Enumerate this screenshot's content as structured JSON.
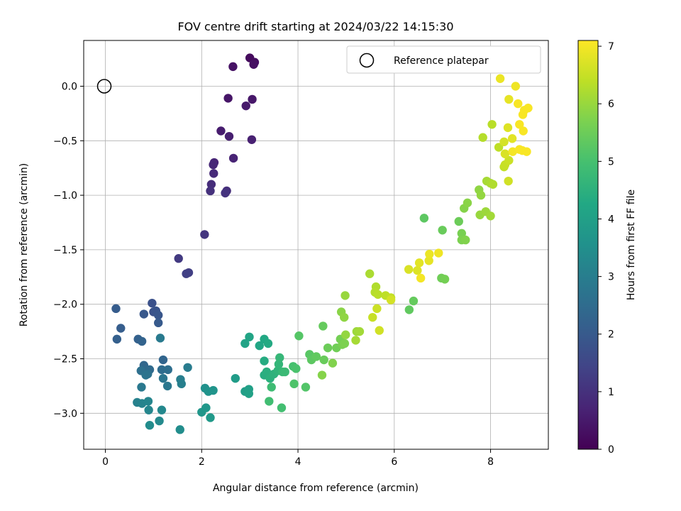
{
  "chart_data": {
    "type": "scatter",
    "title": "FOV centre drift starting at 2024/03/22 14:15:30",
    "xlabel": "Angular distance from reference (arcmin)",
    "ylabel": "Rotation from reference (arcmin)",
    "xlim": [
      -0.45,
      9.2
    ],
    "ylim": [
      -3.33,
      0.42
    ],
    "xticks": [
      0,
      2,
      4,
      6,
      8
    ],
    "yticks": [
      0.0,
      -0.5,
      -1.0,
      -1.5,
      -2.0,
      -2.5,
      -3.0
    ],
    "xtick_labels": [
      "0",
      "2",
      "4",
      "6",
      "8"
    ],
    "ytick_labels": [
      "0.0",
      "−0.5",
      "−1.0",
      "−1.5",
      "−2.0",
      "−2.5",
      "−3.0"
    ],
    "grid": true,
    "legend": {
      "position": "upper right",
      "label": "Reference platepar",
      "marker": "hollow circle"
    },
    "reference_point": {
      "x": 0.0,
      "y": 0.0
    },
    "colorbar": {
      "label": "Hours from first FF file",
      "colormap": "viridis",
      "range": [
        0,
        7.1
      ],
      "ticks": [
        0,
        1,
        2,
        3,
        4,
        5,
        6,
        7
      ],
      "tick_labels": [
        "0",
        "1",
        "2",
        "3",
        "4",
        "5",
        "6",
        "7"
      ]
    },
    "series": [
      {
        "points": [
          [
            3.0,
            0.26,
            0.2
          ],
          [
            3.1,
            0.22,
            0.25
          ],
          [
            3.08,
            0.2,
            0.3
          ],
          [
            2.65,
            0.18,
            0.35
          ],
          [
            2.55,
            -0.11,
            0.4
          ],
          [
            3.05,
            -0.12,
            0.45
          ],
          [
            2.92,
            -0.18,
            0.5
          ],
          [
            2.4,
            -0.41,
            0.55
          ],
          [
            2.57,
            -0.46,
            0.6
          ],
          [
            3.04,
            -0.49,
            0.65
          ],
          [
            2.66,
            -0.66,
            0.7
          ],
          [
            2.26,
            -0.7,
            0.75
          ],
          [
            2.24,
            -0.72,
            0.8
          ],
          [
            2.25,
            -0.8,
            0.85
          ],
          [
            2.2,
            -0.9,
            0.9
          ],
          [
            2.52,
            -0.96,
            0.95
          ],
          [
            2.18,
            -0.96,
            1.0
          ],
          [
            2.49,
            -0.98,
            1.05
          ],
          [
            2.06,
            -1.36,
            1.1
          ],
          [
            1.52,
            -1.58,
            1.2
          ],
          [
            1.73,
            -1.71,
            1.3
          ],
          [
            1.68,
            -1.72,
            1.35
          ],
          [
            0.97,
            -1.99,
            1.75
          ],
          [
            1.0,
            -2.07,
            1.8
          ],
          [
            1.05,
            -2.06,
            1.85
          ],
          [
            1.1,
            -2.1,
            1.9
          ],
          [
            0.8,
            -2.09,
            1.95
          ],
          [
            1.1,
            -2.17,
            2.0
          ],
          [
            0.22,
            -2.04,
            2.05
          ],
          [
            0.32,
            -2.22,
            2.1
          ],
          [
            0.24,
            -2.32,
            2.15
          ],
          [
            0.68,
            -2.32,
            2.2
          ],
          [
            0.76,
            -2.34,
            2.25
          ],
          [
            1.2,
            -2.51,
            2.3
          ],
          [
            0.8,
            -2.56,
            2.35
          ],
          [
            0.8,
            -2.6,
            2.4
          ],
          [
            0.92,
            -2.6,
            2.45
          ],
          [
            1.17,
            -2.6,
            2.5
          ],
          [
            1.3,
            -2.6,
            2.55
          ],
          [
            0.74,
            -2.61,
            2.6
          ],
          [
            0.88,
            -2.64,
            2.65
          ],
          [
            0.84,
            -2.65,
            2.7
          ],
          [
            1.2,
            -2.68,
            2.75
          ],
          [
            1.29,
            -2.75,
            2.8
          ],
          [
            0.75,
            -2.76,
            2.85
          ],
          [
            1.14,
            -2.31,
            2.9
          ],
          [
            1.71,
            -2.58,
            2.95
          ],
          [
            1.56,
            -2.69,
            3.0
          ],
          [
            1.58,
            -2.73,
            3.05
          ],
          [
            0.66,
            -2.9,
            3.1
          ],
          [
            0.76,
            -2.91,
            3.15
          ],
          [
            0.89,
            -2.89,
            3.2
          ],
          [
            0.9,
            -2.97,
            3.25
          ],
          [
            1.17,
            -2.97,
            3.3
          ],
          [
            1.12,
            -3.07,
            3.35
          ],
          [
            0.92,
            -3.11,
            3.4
          ],
          [
            1.55,
            -3.15,
            3.45
          ],
          [
            2.07,
            -2.77,
            3.55
          ],
          [
            2.14,
            -2.8,
            3.6
          ],
          [
            2.24,
            -2.79,
            3.65
          ],
          [
            2.0,
            -2.99,
            3.7
          ],
          [
            2.09,
            -2.95,
            3.75
          ],
          [
            2.18,
            -3.04,
            3.8
          ],
          [
            2.7,
            -2.68,
            3.9
          ],
          [
            2.9,
            -2.8,
            3.95
          ],
          [
            2.98,
            -2.78,
            4.0
          ],
          [
            2.98,
            -2.82,
            4.05
          ],
          [
            2.9,
            -2.36,
            4.1
          ],
          [
            2.99,
            -2.3,
            4.15
          ],
          [
            3.2,
            -2.38,
            4.2
          ],
          [
            3.3,
            -2.32,
            4.25
          ],
          [
            3.38,
            -2.36,
            4.3
          ],
          [
            3.3,
            -2.52,
            4.35
          ],
          [
            3.3,
            -2.65,
            4.4
          ],
          [
            3.35,
            -2.62,
            4.45
          ],
          [
            3.42,
            -2.68,
            4.5
          ],
          [
            3.5,
            -2.64,
            4.55
          ],
          [
            3.58,
            -2.61,
            4.6
          ],
          [
            3.6,
            -2.55,
            4.65
          ],
          [
            3.62,
            -2.49,
            4.7
          ],
          [
            3.68,
            -2.62,
            4.75
          ],
          [
            3.73,
            -2.62,
            4.8
          ],
          [
            3.45,
            -2.76,
            4.85
          ],
          [
            3.4,
            -2.89,
            4.9
          ],
          [
            3.66,
            -2.95,
            4.95
          ],
          [
            3.9,
            -2.57,
            5.0
          ],
          [
            3.96,
            -2.59,
            5.05
          ],
          [
            3.92,
            -2.73,
            5.1
          ],
          [
            4.16,
            -2.76,
            5.15
          ],
          [
            4.02,
            -2.29,
            5.2
          ],
          [
            4.24,
            -2.46,
            5.25
          ],
          [
            4.28,
            -2.51,
            5.3
          ],
          [
            4.38,
            -2.48,
            5.35
          ],
          [
            4.52,
            -2.2,
            5.4
          ],
          [
            4.54,
            -2.51,
            5.45
          ],
          [
            4.62,
            -2.4,
            5.5
          ],
          [
            4.8,
            -2.4,
            5.55
          ],
          [
            4.88,
            -2.32,
            5.6
          ],
          [
            4.92,
            -2.37,
            5.65
          ],
          [
            4.97,
            -2.36,
            5.7
          ],
          [
            4.72,
            -2.54,
            5.75
          ],
          [
            4.5,
            -2.65,
            5.8
          ],
          [
            4.9,
            -2.07,
            5.85
          ],
          [
            4.96,
            -2.12,
            5.9
          ],
          [
            4.99,
            -2.28,
            5.95
          ],
          [
            4.98,
            -1.92,
            6.0
          ],
          [
            5.22,
            -2.25,
            6.05
          ],
          [
            5.28,
            -2.25,
            6.1
          ],
          [
            5.2,
            -2.33,
            6.15
          ],
          [
            5.49,
            -1.72,
            6.2
          ],
          [
            5.62,
            -1.84,
            6.25
          ],
          [
            5.6,
            -1.89,
            6.3
          ],
          [
            5.66,
            -1.91,
            6.35
          ],
          [
            5.82,
            -1.92,
            6.4
          ],
          [
            5.93,
            -1.94,
            6.45
          ],
          [
            5.55,
            -2.12,
            6.5
          ],
          [
            5.64,
            -2.04,
            6.55
          ],
          [
            5.69,
            -2.24,
            6.6
          ],
          [
            5.93,
            -1.96,
            6.65
          ],
          [
            6.3,
            -1.68,
            6.7
          ],
          [
            6.48,
            -1.69,
            6.75
          ],
          [
            6.52,
            -1.62,
            6.8
          ],
          [
            6.72,
            -1.6,
            6.85
          ],
          [
            6.73,
            -1.54,
            6.9
          ],
          [
            6.92,
            -1.53,
            6.95
          ],
          [
            6.55,
            -1.76,
            7.0
          ],
          [
            6.62,
            -1.21,
            5.3
          ],
          [
            6.31,
            -2.05,
            5.35
          ],
          [
            6.4,
            -1.97,
            5.4
          ],
          [
            7.0,
            -1.32,
            5.45
          ],
          [
            7.34,
            -1.24,
            5.5
          ],
          [
            6.98,
            -1.76,
            5.55
          ],
          [
            7.05,
            -1.77,
            5.6
          ],
          [
            7.4,
            -1.35,
            5.65
          ],
          [
            7.4,
            -1.41,
            5.7
          ],
          [
            7.48,
            -1.41,
            5.75
          ],
          [
            7.45,
            -1.12,
            5.8
          ],
          [
            7.52,
            -1.07,
            5.85
          ],
          [
            7.76,
            -0.95,
            5.9
          ],
          [
            7.8,
            -1.0,
            5.95
          ],
          [
            7.78,
            -1.18,
            6.0
          ],
          [
            7.9,
            -1.15,
            6.05
          ],
          [
            8.0,
            -1.19,
            6.1
          ],
          [
            7.92,
            -0.87,
            6.15
          ],
          [
            8.0,
            -0.89,
            6.2
          ],
          [
            8.05,
            -0.9,
            6.25
          ],
          [
            7.84,
            -0.47,
            6.3
          ],
          [
            8.03,
            -0.35,
            6.35
          ],
          [
            8.17,
            -0.56,
            6.4
          ],
          [
            8.28,
            -0.74,
            6.45
          ],
          [
            8.3,
            -0.72,
            6.5
          ],
          [
            8.38,
            -0.68,
            6.55
          ],
          [
            8.37,
            -0.87,
            6.6
          ],
          [
            8.28,
            -0.51,
            6.65
          ],
          [
            8.3,
            -0.62,
            6.7
          ],
          [
            8.36,
            -0.38,
            6.75
          ],
          [
            8.45,
            -0.48,
            6.8
          ],
          [
            8.38,
            -0.12,
            6.85
          ],
          [
            8.2,
            0.07,
            6.9
          ],
          [
            8.52,
            0.0,
            6.95
          ],
          [
            8.46,
            -0.6,
            7.0
          ],
          [
            8.57,
            -0.16,
            7.05
          ],
          [
            8.6,
            -0.58,
            7.05
          ],
          [
            8.66,
            -0.59,
            7.05
          ],
          [
            8.67,
            -0.26,
            7.05
          ],
          [
            8.7,
            -0.22,
            7.05
          ],
          [
            8.68,
            -0.41,
            7.05
          ],
          [
            8.75,
            -0.6,
            7.05
          ],
          [
            8.78,
            -0.2,
            7.05
          ],
          [
            8.6,
            -0.35,
            7.05
          ]
        ]
      }
    ]
  }
}
